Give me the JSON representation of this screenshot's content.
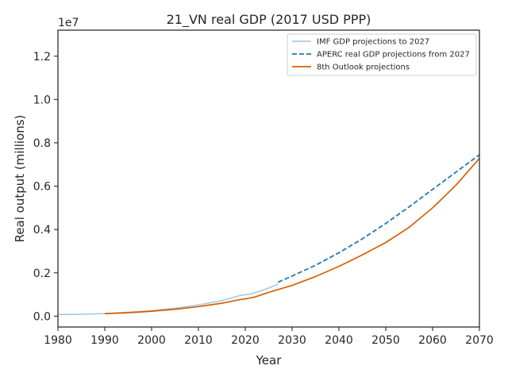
{
  "chart_data": {
    "type": "line",
    "title": "21_VN real GDP (2017 USD PPP)",
    "xlabel": "Year",
    "ylabel": "Real output (millions)",
    "y_offset_label": "1e7",
    "xlim": [
      1980,
      2070
    ],
    "ylim": [
      -0.05,
      1.32
    ],
    "y_scale_multiplier": 10000000,
    "x_ticks": [
      1980,
      1990,
      2000,
      2010,
      2020,
      2030,
      2040,
      2050,
      2060,
      2070
    ],
    "y_ticks": [
      0.0,
      0.2,
      0.4,
      0.6,
      0.8,
      1.0,
      1.2
    ],
    "y_tick_labels": [
      "0.0",
      "0.2",
      "0.4",
      "0.6",
      "0.8",
      "1.0",
      "1.2"
    ],
    "grid": false,
    "legend_position": "top-right",
    "series": [
      {
        "name": "IMF GDP projections to 2027",
        "style": "solid",
        "color": "#a6cee3",
        "x": [
          1980,
          1985,
          1990,
          1995,
          2000,
          2005,
          2010,
          2015,
          2019,
          2020,
          2021,
          2023,
          2025,
          2027
        ],
        "y": [
          0.007,
          0.009,
          0.012,
          0.018,
          0.026,
          0.037,
          0.052,
          0.072,
          0.096,
          0.099,
          0.102,
          0.114,
          0.13,
          0.148
        ]
      },
      {
        "name": "APERC real GDP projections from 2027",
        "style": "dashed",
        "color": "#1f78b4",
        "x": [
          2027,
          2030,
          2035,
          2040,
          2045,
          2050,
          2055,
          2060,
          2065,
          2070
        ],
        "y": [
          0.157,
          0.185,
          0.235,
          0.293,
          0.357,
          0.428,
          0.505,
          0.585,
          0.665,
          0.745
        ]
      },
      {
        "name": "8th Outlook projections",
        "style": "solid",
        "color": "#d95f02",
        "x": [
          1990,
          1995,
          2000,
          2005,
          2010,
          2015,
          2019,
          2020,
          2022,
          2025,
          2030,
          2035,
          2040,
          2045,
          2050,
          2055,
          2060,
          2065,
          2070
        ],
        "y": [
          0.012,
          0.016,
          0.023,
          0.032,
          0.044,
          0.06,
          0.077,
          0.08,
          0.088,
          0.11,
          0.142,
          0.183,
          0.23,
          0.283,
          0.34,
          0.41,
          0.5,
          0.605,
          0.728
        ]
      }
    ]
  }
}
